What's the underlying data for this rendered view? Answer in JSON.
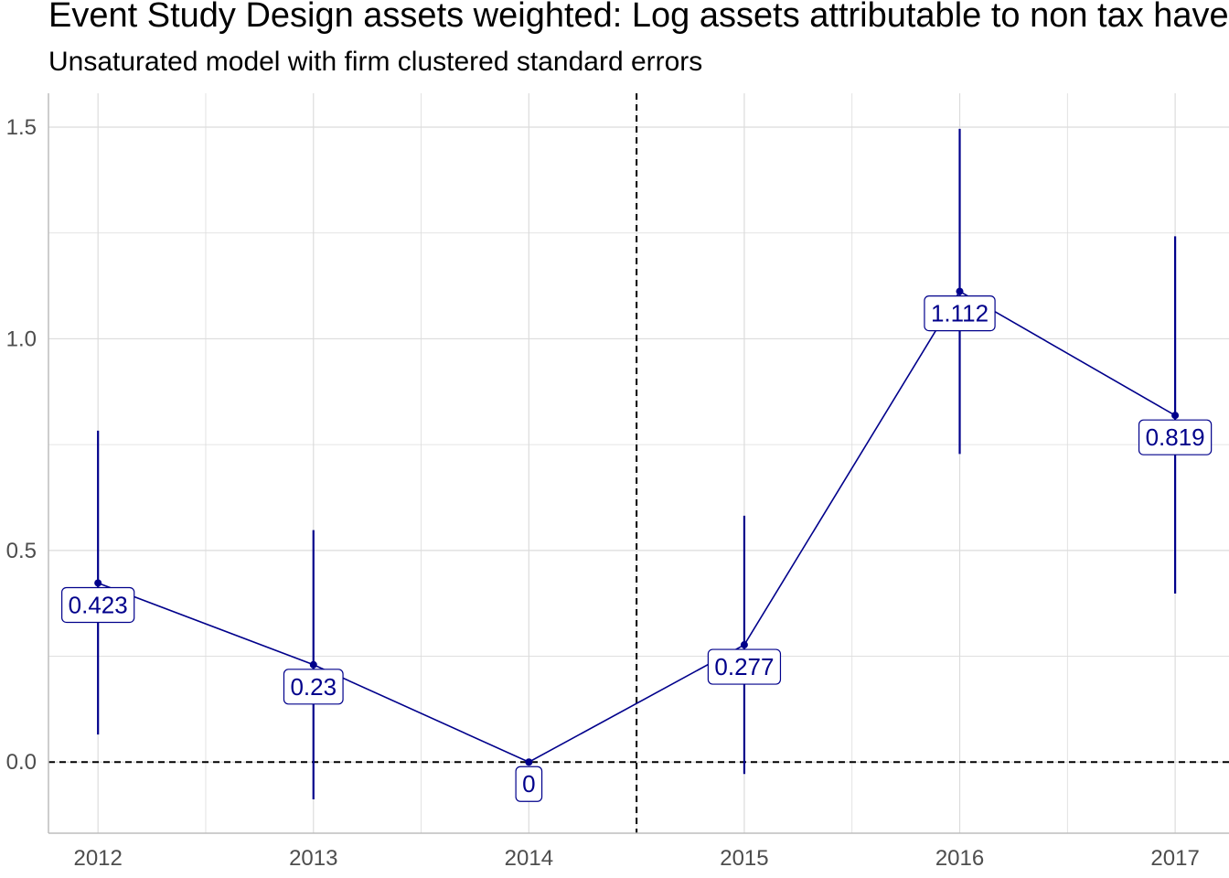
{
  "title": "Event Study Design assets weighted: Log assets attributable to non tax havens",
  "subtitle": "Unsaturated model with firm clustered standard errors",
  "colors": {
    "series": "#00008b",
    "grid": "#dcdcdc",
    "axis_text": "#4d4d4d",
    "reference_line": "#000000"
  },
  "chart_data": {
    "type": "line",
    "x": [
      2012,
      2013,
      2014,
      2015,
      2016,
      2017
    ],
    "x_tick_labels": [
      "2012",
      "2013",
      "2014",
      "2015",
      "2016",
      "2017"
    ],
    "y_tick_values": [
      0.0,
      0.5,
      1.0,
      1.5
    ],
    "y_tick_labels": [
      "0.0",
      "0.5",
      "1.0",
      "1.5"
    ],
    "xlim": [
      2011.77,
      2017.25
    ],
    "ylim": [
      -0.168,
      1.58
    ],
    "series": [
      {
        "values": [
          0.423,
          0.23,
          0.0,
          0.277,
          1.112,
          0.819
        ],
        "lower": [
          0.065,
          -0.088,
          0.0,
          -0.028,
          0.728,
          0.398
        ],
        "upper": [
          0.783,
          0.548,
          0.0,
          0.582,
          1.496,
          1.242
        ],
        "data_labels": [
          "0.423",
          "0.23",
          "0",
          "0.277",
          "1.112",
          "0.819"
        ]
      }
    ],
    "reference_lines": {
      "horizontal_y": 0,
      "vertical_x": 2014.5,
      "style": "dashed"
    },
    "grid": true,
    "legend": "none"
  }
}
